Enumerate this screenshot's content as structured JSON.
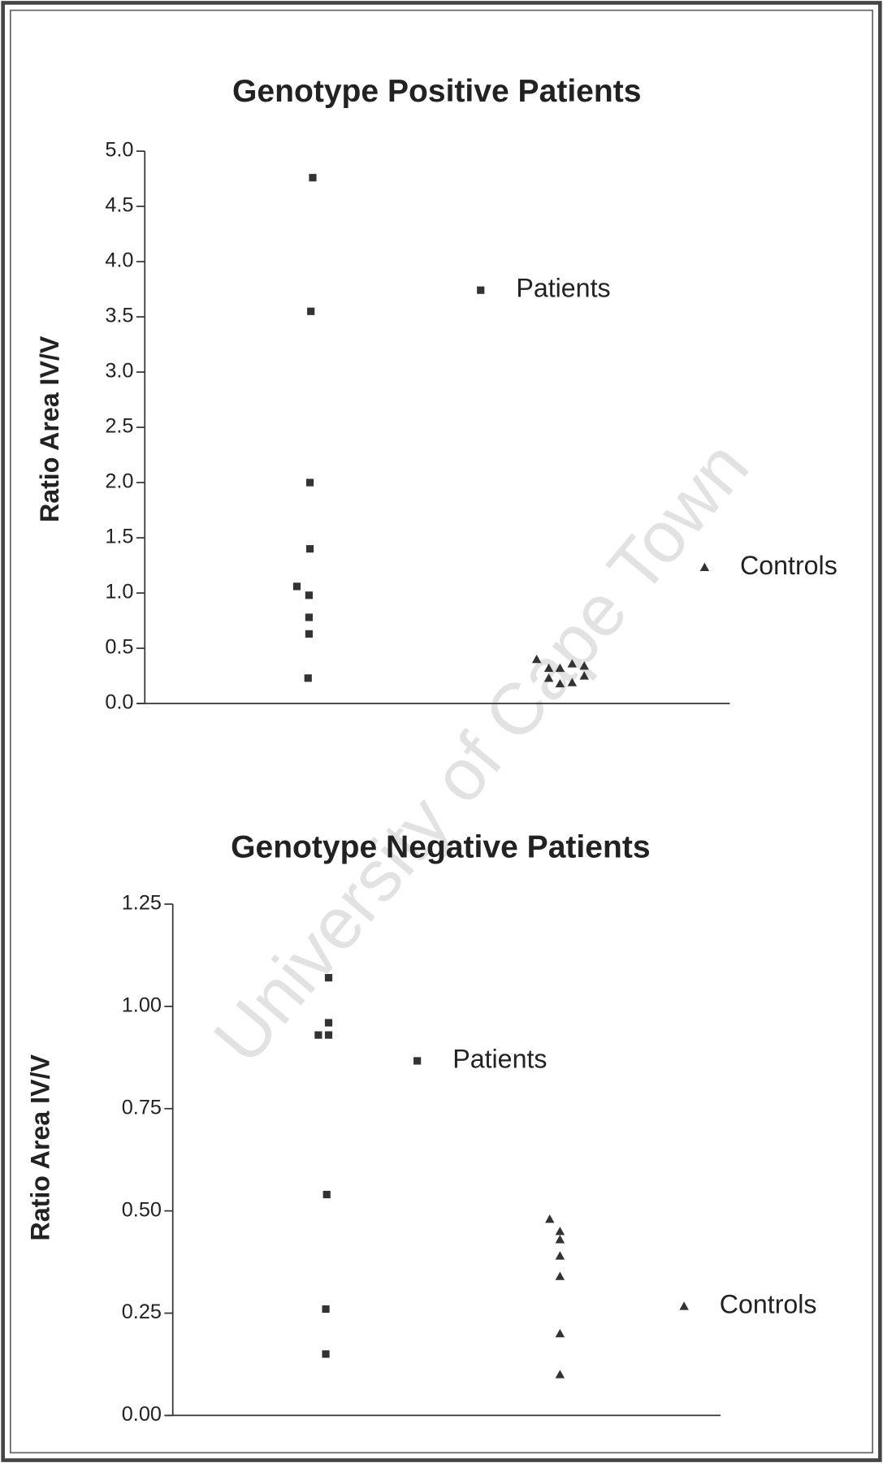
{
  "watermark": "University of Cape Town",
  "chart_data": [
    {
      "type": "scatter",
      "title": "Genotype Positive Patients",
      "y_label": "Ratio Area IV/V",
      "ylim": [
        0,
        5
      ],
      "yticks": [
        {
          "value": 0,
          "label": "0.0"
        },
        {
          "value": 0.5,
          "label": "0.5"
        },
        {
          "value": 1,
          "label": "1.0"
        },
        {
          "value": 1.5,
          "label": "1.5"
        },
        {
          "value": 2,
          "label": "2.0"
        },
        {
          "value": 2.5,
          "label": "2.5"
        },
        {
          "value": 3,
          "label": "3.0"
        },
        {
          "value": 3.5,
          "label": "3.5"
        },
        {
          "value": 4,
          "label": "4.0"
        },
        {
          "value": 4.5,
          "label": "4.5"
        },
        {
          "value": 5,
          "label": "5.0"
        }
      ],
      "series": [
        {
          "name": "Patients",
          "color": "#333333",
          "values": [
            4.76,
            3.55,
            2.0,
            1.4,
            1.06,
            0.98,
            0.78,
            0.63,
            0.23
          ]
        },
        {
          "name": "Controls",
          "color": "#333333",
          "values": [
            0.4,
            0.34,
            0.32,
            0.32,
            0.36,
            0.23,
            0.18,
            0.19,
            0.25
          ]
        }
      ]
    },
    {
      "type": "scatter",
      "title": "Genotype Negative Patients",
      "y_label": "Ratio Area IV/V",
      "ylim": [
        0,
        1.25
      ],
      "yticks": [
        {
          "value": 0,
          "label": "0.00"
        },
        {
          "value": 0.25,
          "label": "0.25"
        },
        {
          "value": 0.5,
          "label": "0.50"
        },
        {
          "value": 0.75,
          "label": "0.75"
        },
        {
          "value": 1,
          "label": "1.00"
        },
        {
          "value": 1.25,
          "label": "1.25"
        }
      ],
      "series": [
        {
          "name": "Patients",
          "color": "#333333",
          "values": [
            1.07,
            0.96,
            0.93,
            0.93,
            0.54,
            0.26,
            0.15
          ]
        },
        {
          "name": "Controls",
          "color": "#333333",
          "values": [
            0.48,
            0.45,
            0.43,
            0.39,
            0.34,
            0.2,
            0.1
          ]
        }
      ]
    }
  ]
}
